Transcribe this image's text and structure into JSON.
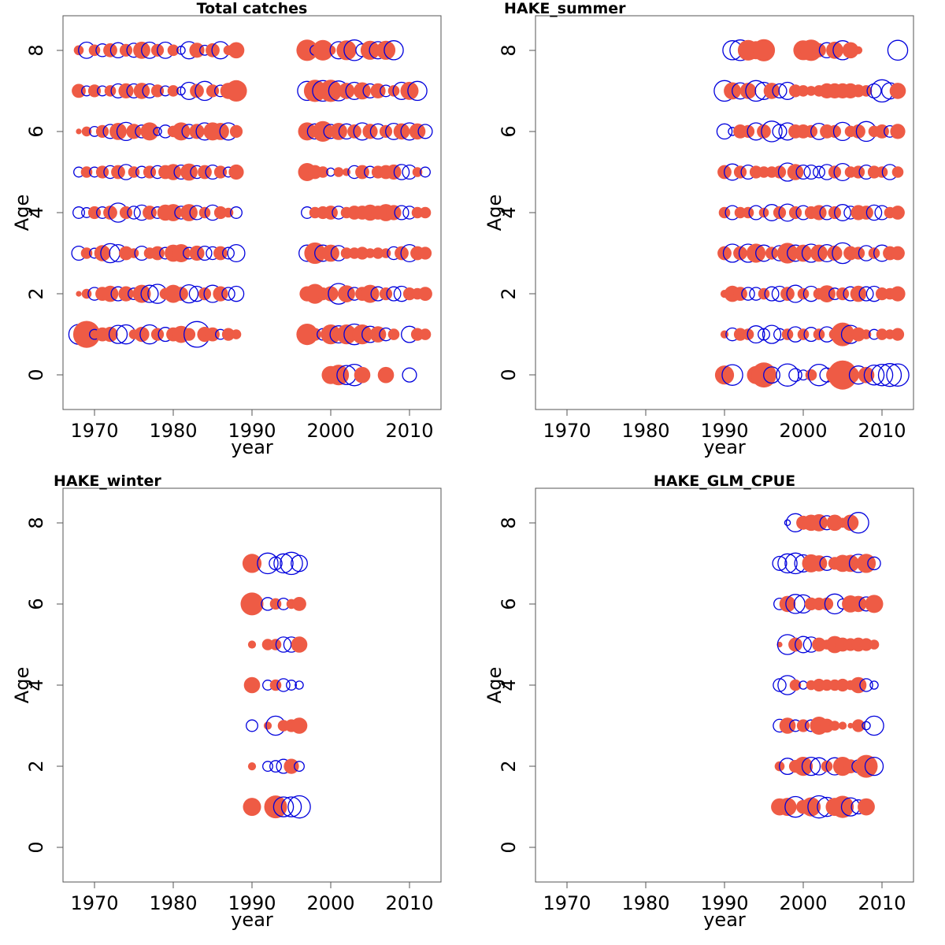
{
  "colors": {
    "positive": "#EE5B45",
    "negative": "#0000DD",
    "frame": "#555555"
  },
  "chart_data": [
    {
      "type": "scatter",
      "subtype": "bubble",
      "title": "Total catches",
      "xlabel": "year",
      "ylabel": "Age",
      "xlim": [
        1966,
        2014
      ],
      "ylim": [
        -0.85,
        8.85
      ],
      "xticks": [
        "1970",
        "1980",
        "1990",
        "2000",
        "2010"
      ],
      "yticks": [
        "0",
        "2",
        "4",
        "6",
        "8"
      ],
      "years": [
        1968,
        1969,
        1970,
        1971,
        1972,
        1973,
        1974,
        1975,
        1976,
        1977,
        1978,
        1979,
        1980,
        1981,
        1982,
        1983,
        1984,
        1985,
        1986,
        1987,
        1988,
        1997,
        1998,
        1999,
        2000,
        2001,
        2002,
        2003,
        2004,
        2005,
        2006,
        2007,
        2008,
        2009,
        2010,
        2011,
        2012
      ],
      "ages": [
        {
          "age": 8,
          "residuals": [
            0.3,
            -0.8,
            0.4,
            -0.5,
            0.6,
            -0.7,
            0.5,
            -0.6,
            0.9,
            -0.8,
            0.5,
            -0.8,
            0.4,
            -0.2,
            -0.9,
            0.7,
            -0.3,
            0.6,
            -0.9,
            0.3,
            0.8,
            1.4,
            -0.3,
            1.3,
            0.3,
            -0.9,
            1.2,
            -1.3,
            -0.5,
            1.1,
            -0.9,
            1.1,
            -1.1,
            0,
            0,
            0,
            0
          ]
        },
        {
          "age": 7,
          "residuals": [
            0.6,
            -0.3,
            0.5,
            -0.3,
            0.4,
            -0.6,
            0.7,
            -0.6,
            0.8,
            -0.6,
            0.5,
            -0.3,
            0.4,
            -0.2,
            -0.9,
            0.6,
            -1.1,
            0.5,
            -0.4,
            0.8,
            1.4,
            -1.1,
            1.5,
            -1.3,
            1.5,
            -1.2,
            0.8,
            -0.9,
            0.9,
            -0.6,
            0.7,
            -0.4,
            0.4,
            -0.9,
            1.0,
            -1.1,
            0
          ]
        },
        {
          "age": 6,
          "residuals": [
            0.1,
            0.3,
            -0.3,
            0.5,
            -0.6,
            0.9,
            -1.0,
            0.7,
            -0.5,
            1.0,
            -0.2,
            -0.5,
            0.4,
            1.0,
            -0.6,
            0.7,
            -0.9,
            1.0,
            0.9,
            -0.9,
            0.5,
            1.0,
            -0.7,
            1.3,
            -0.6,
            0.9,
            -0.7,
            0.6,
            -0.9,
            0.7,
            -0.7,
            0.5,
            -0.8,
            0.8,
            -0.9,
            0.8,
            -0.6
          ]
        },
        {
          "age": 5,
          "residuals": [
            -0.3,
            0.4,
            -0.3,
            0.5,
            -0.5,
            0.6,
            -0.7,
            0.4,
            -0.4,
            0.5,
            -0.5,
            0.6,
            0.8,
            -0.6,
            0.9,
            -0.5,
            0.6,
            -0.6,
            0.5,
            -0.3,
            0.7,
            1.0,
            0.6,
            0.4,
            -0.2,
            0.3,
            0.2,
            -0.5,
            0.6,
            -0.4,
            0.5,
            0.6,
            0.7,
            -0.7,
            -0.6,
            0.3,
            -0.3
          ]
        },
        {
          "age": 4,
          "residuals": [
            -0.4,
            -0.3,
            0.5,
            -0.4,
            0.6,
            -1.1,
            0.5,
            -0.5,
            -0.7,
            0.6,
            -0.4,
            0.8,
            0.9,
            -0.5,
            0.9,
            -0.6,
            0.4,
            -0.7,
            0.5,
            0.3,
            -0.4,
            -0.4,
            0.4,
            0.5,
            0.6,
            -0.5,
            0.4,
            0.6,
            0.6,
            0.8,
            0.6,
            0.9,
            0.7,
            -0.6,
            -0.5,
            0.4,
            0.4
          ]
        },
        {
          "age": 3,
          "residuals": [
            -0.6,
            0.4,
            -0.3,
            0.8,
            -1.1,
            -0.9,
            0.6,
            0.3,
            -0.6,
            0.4,
            0.6,
            -0.4,
            0.9,
            1.0,
            -0.4,
            0.7,
            -0.6,
            -0.5,
            0.6,
            -0.4,
            -0.9,
            -0.8,
            1.4,
            -0.8,
            0.9,
            -0.7,
            0.4,
            0.4,
            0.5,
            0.3,
            0.4,
            0.3,
            -0.5,
            0.6,
            -0.9,
            0.6,
            0.5
          ]
        },
        {
          "age": 2,
          "residuals": [
            0.1,
            0.3,
            -0.5,
            0.6,
            0.8,
            -0.6,
            0.7,
            -0.4,
            1.0,
            -0.9,
            -1.1,
            0.4,
            1.0,
            0.6,
            -1.0,
            -0.7,
            0.5,
            -0.9,
            0.7,
            -0.5,
            -0.7,
            0.7,
            1.2,
            0.5,
            0.7,
            -1.3,
            0.9,
            -0.5,
            0.6,
            1.0,
            -0.6,
            0.5,
            -0.6,
            -0.7,
            0.5,
            0.4,
            0.6
          ]
        },
        {
          "age": 1,
          "residuals": [
            -1.2,
            2.2,
            -0.3,
            0.6,
            0.7,
            -1.0,
            -1.1,
            0.3,
            0.7,
            -1.1,
            0.5,
            -0.6,
            0.6,
            0.9,
            0.5,
            -2.0,
            0.7,
            0.6,
            -0.3,
            0.5,
            0.3,
            1.4,
            0.5,
            -0.4,
            1.2,
            -0.9,
            1.2,
            -1.3,
            1.2,
            -0.8,
            0.8,
            -0.5,
            0.4,
            0,
            -0.8,
            0.5,
            0.4
          ]
        },
        {
          "age": 0,
          "residuals": [
            0,
            0,
            0,
            0,
            0,
            0,
            0,
            0,
            0,
            0,
            0,
            0,
            0,
            0,
            0,
            0,
            0,
            0,
            0,
            0,
            0,
            0,
            0,
            0,
            1.0,
            1.3,
            -1.1,
            -1.4,
            0.8,
            0,
            0,
            0.8,
            0,
            0,
            -0.6,
            0,
            0
          ]
        }
      ]
    },
    {
      "type": "scatter",
      "subtype": "bubble",
      "title": "HAKE_summer",
      "xlabel": "year",
      "ylabel": "Age",
      "xlim": [
        1966,
        2014
      ],
      "ylim": [
        -0.85,
        8.85
      ],
      "xticks": [
        "1970",
        "1980",
        "1990",
        "2000",
        "2010"
      ],
      "yticks": [
        "0",
        "2",
        "4",
        "6",
        "8"
      ],
      "years": [
        1990,
        1991,
        1992,
        1993,
        1994,
        1995,
        1996,
        1997,
        1998,
        1999,
        2000,
        2001,
        2002,
        2003,
        2004,
        2005,
        2006,
        2007,
        2008,
        2009,
        2010,
        2011,
        2012
      ],
      "ages": [
        {
          "age": 8,
          "residuals": [
            0,
            -1.1,
            -1.3,
            1.3,
            1.0,
            1.5,
            0,
            0,
            0,
            0,
            1.2,
            1.4,
            0.6,
            -0.7,
            0.9,
            -1.1,
            0.8,
            0.2,
            0,
            0,
            0,
            0,
            -1.2
          ]
        },
        {
          "age": 7,
          "residuals": [
            -1.3,
            0.9,
            -0.8,
            0.8,
            -1.3,
            -0.9,
            0.8,
            -0.6,
            -0.9,
            0.5,
            0.4,
            0.3,
            0.4,
            0.7,
            0.7,
            0.7,
            0.7,
            0.5,
            0.4,
            -0.6,
            -1.5,
            -0.8,
            0.8
          ]
        },
        {
          "age": 6,
          "residuals": [
            -0.7,
            -0.2,
            0.6,
            0.5,
            -0.9,
            0.6,
            -1.3,
            -0.6,
            -0.9,
            0.6,
            0.6,
            0.5,
            -0.8,
            0.6,
            0.5,
            -1.0,
            0.4,
            0.6,
            -1.2,
            0.4,
            0.6,
            -0.4,
            0.7
          ]
        },
        {
          "age": 5,
          "residuals": [
            0.6,
            -0.8,
            0.5,
            -0.6,
            0.5,
            0.4,
            0.4,
            0.5,
            -1.0,
            0.8,
            -0.6,
            -0.6,
            -0.4,
            -0.7,
            0.5,
            -0.9,
            0.4,
            0.5,
            -0.6,
            0.5,
            0.4,
            -0.7,
            0.4
          ]
        },
        {
          "age": 4,
          "residuals": [
            0.4,
            -0.6,
            0.4,
            0.4,
            -0.6,
            0.3,
            -0.8,
            0.5,
            -0.9,
            0.5,
            -0.6,
            0.5,
            0.7,
            -0.6,
            0.5,
            -0.8,
            -0.5,
            0.7,
            0.6,
            -0.7,
            -0.6,
            0.4,
            0.6
          ]
        },
        {
          "age": 3,
          "residuals": [
            0.6,
            -1.0,
            0.6,
            -1.0,
            1.1,
            -0.8,
            0.5,
            -0.7,
            1.3,
            -0.8,
            0.9,
            -1.0,
            0.9,
            -0.9,
            0.7,
            -1.3,
            0.6,
            0.5,
            -0.7,
            0.4,
            -0.8,
            0.6,
            0.6
          ]
        },
        {
          "age": 2,
          "residuals": [
            0.2,
            0.8,
            0.6,
            -0.5,
            -0.5,
            0.4,
            -0.6,
            -0.7,
            0.6,
            -0.9,
            0.4,
            -0.7,
            0.4,
            0.9,
            -0.4,
            0.5,
            -0.6,
            0.8,
            -0.6,
            -0.7,
            0.5,
            0.4,
            0.7
          ]
        },
        {
          "age": 1,
          "residuals": [
            0.2,
            -0.5,
            0.5,
            0.4,
            -0.9,
            -0.4,
            -1.0,
            -0.4,
            0.4,
            -0.7,
            0.4,
            -0.6,
            0.4,
            -0.7,
            0.4,
            1.7,
            -1.0,
            0.6,
            0.3,
            -0.3,
            0.4,
            0.3,
            0.5
          ]
        },
        {
          "age": 0,
          "residuals": [
            1.1,
            -1.3,
            0,
            0,
            1.0,
            1.9,
            -0.8,
            0,
            -1.5,
            -0.5,
            -0.3,
            0.4,
            -1.4,
            -0.6,
            0.9,
            2.6,
            0.9,
            -1.0,
            0.8,
            -1.2,
            -1.4,
            -1.6,
            -1.5
          ]
        }
      ]
    },
    {
      "type": "scatter",
      "subtype": "bubble",
      "title": "HAKE_winter",
      "xlabel": "year",
      "ylabel": "Age",
      "xlim": [
        1966,
        2014
      ],
      "ylim": [
        -0.85,
        8.85
      ],
      "xticks": [
        "1970",
        "1980",
        "1990",
        "2000",
        "2010"
      ],
      "yticks": [
        "0",
        "2",
        "4",
        "6",
        "8"
      ],
      "years": [
        1990,
        1991,
        1992,
        1993,
        1994,
        1995,
        1996
      ],
      "ages": [
        {
          "age": 7,
          "residuals": [
            1.1,
            0,
            -1.3,
            -0.5,
            -1.1,
            -1.5,
            -0.8
          ]
        },
        {
          "age": 6,
          "residuals": [
            1.6,
            0,
            -0.5,
            0.4,
            -0.4,
            0.3,
            0.6
          ]
        },
        {
          "age": 5,
          "residuals": [
            0.2,
            0,
            0.4,
            0.4,
            -0.7,
            -0.7,
            0.8
          ]
        },
        {
          "age": 4,
          "residuals": [
            0.8,
            0,
            -0.3,
            0.4,
            -0.5,
            -0.3,
            -0.2
          ]
        },
        {
          "age": 3,
          "residuals": [
            -0.4,
            0,
            0.2,
            -1.1,
            0.4,
            0.5,
            0.8
          ]
        },
        {
          "age": 2,
          "residuals": [
            0.2,
            0,
            -0.3,
            -0.4,
            -0.6,
            0.7,
            -0.3
          ]
        },
        {
          "age": 1,
          "residuals": [
            1.0,
            0,
            0,
            1.6,
            -1.2,
            -1.2,
            -1.5
          ]
        }
      ]
    },
    {
      "type": "scatter",
      "subtype": "bubble",
      "title": "HAKE_GLM_CPUE",
      "xlabel": "year",
      "ylabel": "Age",
      "xlim": [
        1966,
        2014
      ],
      "ylim": [
        -0.85,
        8.85
      ],
      "xticks": [
        "1970",
        "1980",
        "1990",
        "2000",
        "2010"
      ],
      "yticks": [
        "0",
        "2",
        "4",
        "6",
        "8"
      ],
      "years": [
        1997,
        1998,
        1999,
        2000,
        2001,
        2002,
        2003,
        2004,
        2005,
        2006,
        2007,
        2008,
        2009
      ],
      "ages": [
        {
          "age": 8,
          "residuals": [
            0,
            -0.1,
            -1.0,
            0.6,
            0.8,
            0.9,
            -0.6,
            0.8,
            0.3,
            0.8,
            -1.3,
            0,
            0
          ]
        },
        {
          "age": 7,
          "residuals": [
            -0.6,
            -1.1,
            -1.3,
            -0.9,
            1.0,
            0.8,
            -0.6,
            0.5,
            0.9,
            0.9,
            -1.0,
            1.1,
            -0.5
          ]
        },
        {
          "age": 6,
          "residuals": [
            -0.4,
            0.8,
            -1.1,
            -1.0,
            0.5,
            0.5,
            0.5,
            -1.2,
            -0.3,
            0.9,
            0.8,
            -0.6,
            1.0
          ]
        },
        {
          "age": 5,
          "residuals": [
            0.1,
            -1.2,
            0.6,
            -0.8,
            -0.7,
            0.6,
            0.3,
            0.9,
            0.6,
            0.5,
            0.6,
            0.5,
            0.3
          ]
        },
        {
          "age": 4,
          "residuals": [
            -0.5,
            -1.1,
            0.4,
            -0.2,
            0.3,
            0.5,
            0.4,
            0.4,
            0.5,
            0.3,
            0.8,
            -0.5,
            -0.2
          ]
        },
        {
          "age": 3,
          "residuals": [
            -0.5,
            0.8,
            -0.4,
            0.5,
            -0.4,
            1.0,
            0.6,
            0.3,
            0.2,
            0.1,
            0.5,
            -0.2,
            -1.1
          ]
        },
        {
          "age": 2,
          "residuals": [
            0.3,
            -0.8,
            0.5,
            1.1,
            -1.0,
            -0.9,
            0.4,
            -0.9,
            1.1,
            0.6,
            -0.5,
            1.6,
            -1.0
          ]
        },
        {
          "age": 1,
          "residuals": [
            0.9,
            1.0,
            -1.3,
            0.6,
            1.1,
            -1.5,
            -1.1,
            1.0,
            1.5,
            -1.0,
            -0.6,
            0.9,
            0
          ]
        },
        {
          "age": 0,
          "residuals": [
            0,
            0,
            0,
            0,
            0,
            0,
            0,
            0,
            0,
            0,
            0,
            0,
            0
          ]
        }
      ]
    }
  ]
}
